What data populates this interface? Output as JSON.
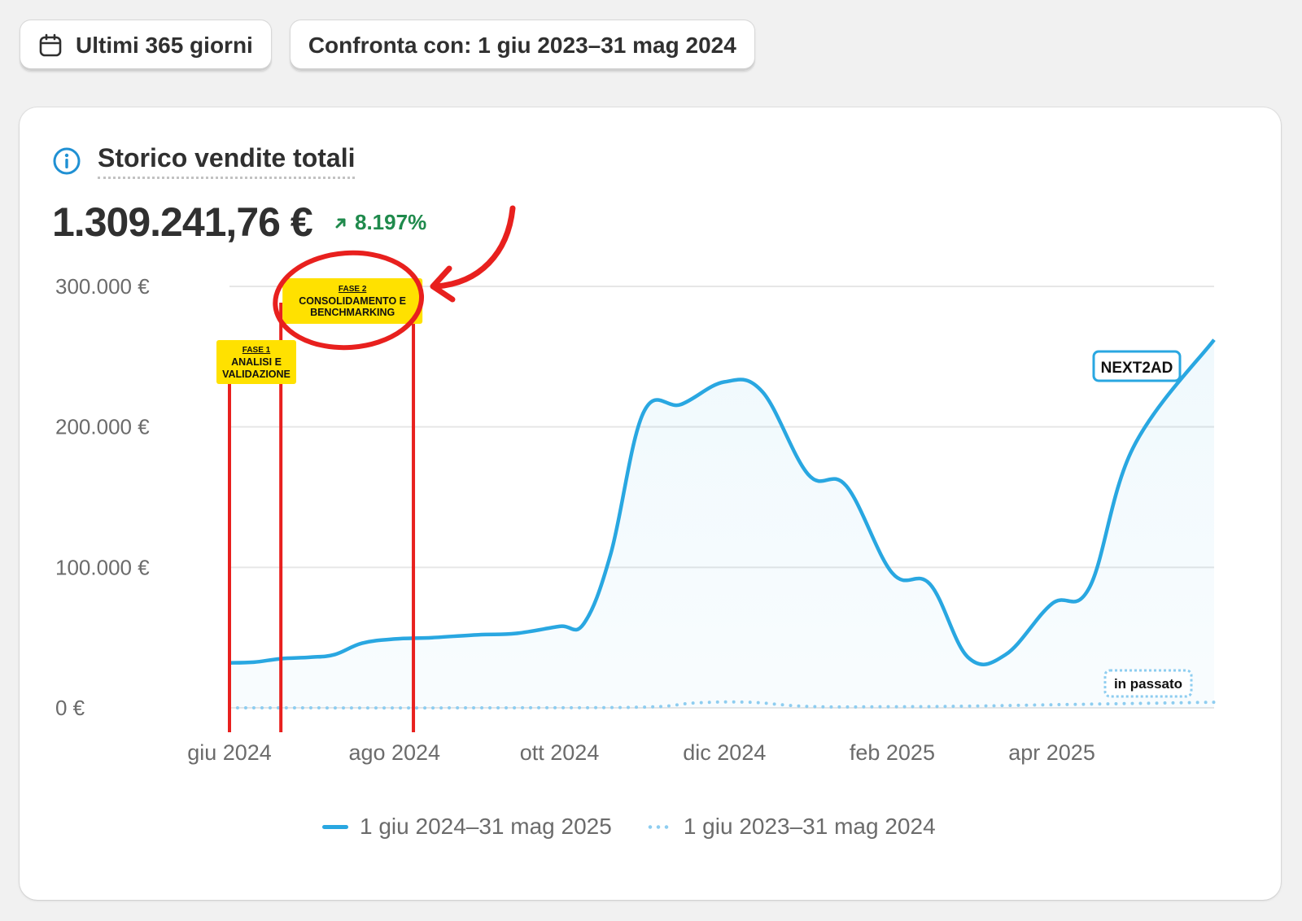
{
  "date_range_button": {
    "icon": "calendar-icon",
    "label": "Ultimi 365 giorni"
  },
  "compare_button": {
    "label": "Confronta con: 1 giu 2023–31 mag 2024"
  },
  "card": {
    "title": "Storico vendite totali",
    "total_value": "1.309.241,76 €",
    "change_percent": "8.197%",
    "change_direction": "up",
    "colors": {
      "accent": "#29a7e1",
      "positive": "#1f8a4c",
      "annotation_red": "#e8201e",
      "highlight_yellow": "#ffe100"
    }
  },
  "annotations": {
    "phase1": {
      "heading": "FASE 1",
      "line1": "ANALISI E",
      "line2": "VALIDAZIONE"
    },
    "phase2": {
      "heading": "FASE 2",
      "line1": "CONSOLIDAMENTO E",
      "line2": "BENCHMARKING"
    },
    "logo_text": "NEXT2AD",
    "past_label": "in passato"
  },
  "chart_data": {
    "type": "line",
    "ytick_labels": [
      "0 €",
      "100.000 €",
      "200.000 €",
      "300.000 €"
    ],
    "yticks": [
      0,
      100000,
      200000,
      300000
    ],
    "ylim": [
      0,
      300000
    ],
    "xtick_labels": [
      "giu 2024",
      "ago 2024",
      "ott 2024",
      "dic 2024",
      "feb 2025",
      "apr 2025"
    ],
    "grid": true,
    "legend_position": "bottom",
    "phase_markers": [
      {
        "phase": "phase1",
        "start": "2024-06-01",
        "end": "2024-06-20"
      },
      {
        "phase": "phase2",
        "start": "2024-06-20",
        "end": "2024-08-08"
      }
    ],
    "series": [
      {
        "name": "1 giu 2024–31 mag 2025",
        "style": "solid",
        "color": "#29a7e1",
        "points": [
          [
            "2024-06-01",
            32000
          ],
          [
            "2024-06-10",
            32500
          ],
          [
            "2024-06-20",
            35000
          ],
          [
            "2024-07-01",
            36000
          ],
          [
            "2024-07-10",
            38000
          ],
          [
            "2024-07-20",
            46000
          ],
          [
            "2024-08-01",
            49000
          ],
          [
            "2024-08-15",
            50000
          ],
          [
            "2024-09-01",
            52000
          ],
          [
            "2024-09-15",
            53000
          ],
          [
            "2024-10-01",
            58000
          ],
          [
            "2024-10-10",
            60000
          ],
          [
            "2024-10-20",
            110000
          ],
          [
            "2024-11-01",
            210000
          ],
          [
            "2024-11-15",
            216000
          ],
          [
            "2024-12-01",
            232000
          ],
          [
            "2024-12-15",
            225000
          ],
          [
            "2025-01-01",
            166000
          ],
          [
            "2025-01-15",
            158000
          ],
          [
            "2025-02-01",
            96000
          ],
          [
            "2025-02-15",
            88000
          ],
          [
            "2025-03-01",
            36000
          ],
          [
            "2025-03-15",
            38000
          ],
          [
            "2025-04-01",
            74000
          ],
          [
            "2025-04-15",
            86000
          ],
          [
            "2025-05-01",
            185000
          ],
          [
            "2025-05-31",
            262000
          ]
        ]
      },
      {
        "name": "1 giu 2023–31 mag 2024",
        "style": "dotted",
        "color": "#8ecdf0",
        "points": [
          [
            "2024-06-01",
            0
          ],
          [
            "2024-09-01",
            0
          ],
          [
            "2024-11-01",
            500
          ],
          [
            "2024-11-20",
            3500
          ],
          [
            "2024-12-10",
            4000
          ],
          [
            "2025-01-01",
            1000
          ],
          [
            "2025-02-01",
            800
          ],
          [
            "2025-03-01",
            1200
          ],
          [
            "2025-04-01",
            2200
          ],
          [
            "2025-05-31",
            4000
          ]
        ]
      }
    ]
  }
}
